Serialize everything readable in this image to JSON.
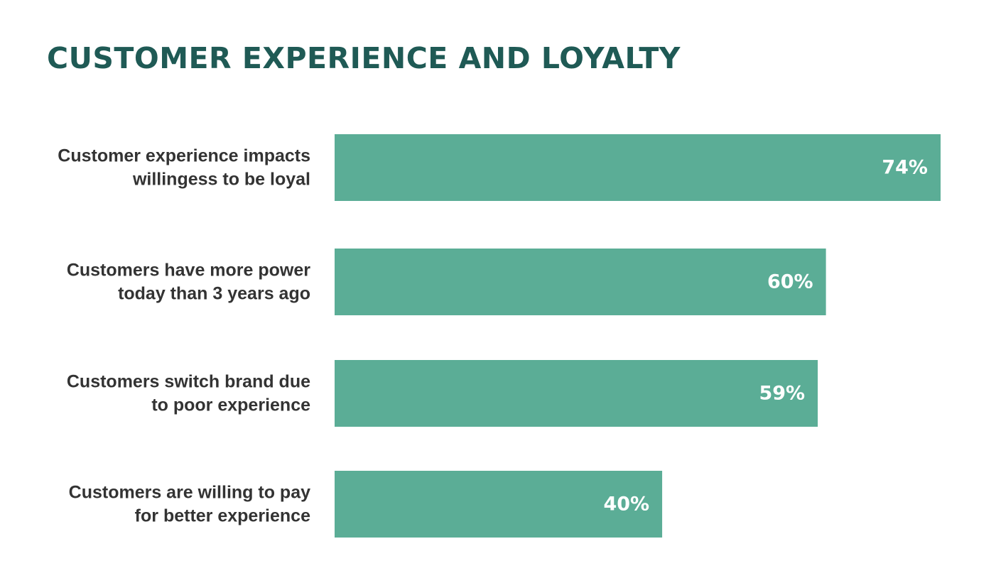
{
  "colors": {
    "title": "#1f5a55",
    "bar": "#5bad96",
    "category_text": "#333333",
    "value_text": "#ffffff",
    "background": "#ffffff"
  },
  "chart_data": {
    "type": "bar",
    "orientation": "horizontal",
    "title": "CUSTOMER EXPERIENCE AND LOYALTY",
    "categories": [
      [
        "Customer experience impacts",
        "willingess to be loyal"
      ],
      [
        "Customers have more power",
        "today than 3 years ago"
      ],
      [
        "Customers switch brand due",
        "to poor experience"
      ],
      [
        "Customers are willing to pay",
        "for better experience"
      ]
    ],
    "values": [
      74,
      60,
      59,
      40
    ],
    "value_labels": [
      "74%",
      "60%",
      "59%",
      "40%"
    ],
    "unit": "%",
    "xlim": [
      0,
      100
    ],
    "grid": false,
    "legend": "none"
  }
}
